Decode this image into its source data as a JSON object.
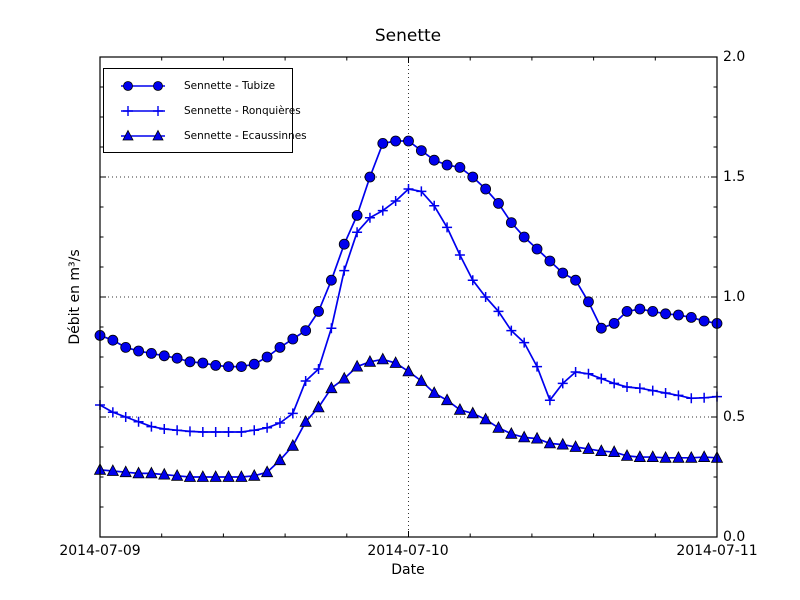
{
  "figure": {
    "title": "Senette"
  },
  "chart_data": {
    "type": "line",
    "title": "Senette",
    "xlabel": "Date",
    "ylabel": "Débit en m³/s",
    "x_tick_labels": [
      "2014-07-09",
      "2014-07-10",
      "2014-07-11"
    ],
    "y_tick_labels": [
      "0.0",
      "0.5",
      "1.0",
      "1.5",
      "2.0"
    ],
    "y_tick_values": [
      0.0,
      0.5,
      1.0,
      1.5,
      2.0
    ],
    "ylim": [
      0.0,
      2.0
    ],
    "x_hours_range": [
      0,
      48
    ],
    "x_minor_tick_step_hours": 4.8,
    "y_minor_tick_step": 0.125,
    "grid": "dotted, horizontal at 0.5/1.0/1.5 and vertical at 2014-07-10",
    "legend_position": "upper-left",
    "line_color": "#0000ee",
    "marker_edge_color": "#000000",
    "series": [
      {
        "name": "Sennette - Tubize",
        "marker": "circle",
        "values": [
          0.84,
          0.82,
          0.79,
          0.775,
          0.765,
          0.755,
          0.745,
          0.73,
          0.725,
          0.715,
          0.71,
          0.71,
          0.72,
          0.75,
          0.79,
          0.825,
          0.86,
          0.94,
          1.07,
          1.22,
          1.34,
          1.5,
          1.64,
          1.65,
          1.65,
          1.61,
          1.57,
          1.55,
          1.54,
          1.5,
          1.45,
          1.39,
          1.31,
          1.25,
          1.2,
          1.15,
          1.1,
          1.07,
          0.98,
          0.87,
          0.89,
          0.94,
          0.95,
          0.94,
          0.93,
          0.925,
          0.915,
          0.9,
          0.89
        ]
      },
      {
        "name": "Sennette - Ronquières",
        "marker": "plus",
        "values": [
          0.55,
          0.52,
          0.5,
          0.48,
          0.46,
          0.45,
          0.445,
          0.44,
          0.4375,
          0.4375,
          0.4375,
          0.4375,
          0.445,
          0.455,
          0.475,
          0.515,
          0.65,
          0.7,
          0.87,
          1.11,
          1.27,
          1.33,
          1.36,
          1.4,
          1.45,
          1.44,
          1.38,
          1.29,
          1.175,
          1.07,
          1.0,
          0.94,
          0.86,
          0.81,
          0.71,
          0.57,
          0.64,
          0.6875,
          0.68,
          0.66,
          0.64,
          0.625,
          0.62,
          0.61,
          0.6,
          0.59,
          0.578,
          0.58,
          0.585
        ]
      },
      {
        "name": "Sennette - Ecaussinnes",
        "marker": "triangle",
        "values": [
          0.28,
          0.275,
          0.27,
          0.265,
          0.265,
          0.26,
          0.255,
          0.25,
          0.25,
          0.25,
          0.25,
          0.25,
          0.255,
          0.27,
          0.32,
          0.38,
          0.48,
          0.54,
          0.62,
          0.66,
          0.71,
          0.73,
          0.74,
          0.725,
          0.69,
          0.65,
          0.6,
          0.57,
          0.53,
          0.515,
          0.49,
          0.455,
          0.43,
          0.415,
          0.41,
          0.39,
          0.385,
          0.375,
          0.367,
          0.358,
          0.354,
          0.338,
          0.333,
          0.333,
          0.33,
          0.33,
          0.33,
          0.333,
          0.33
        ]
      }
    ]
  }
}
